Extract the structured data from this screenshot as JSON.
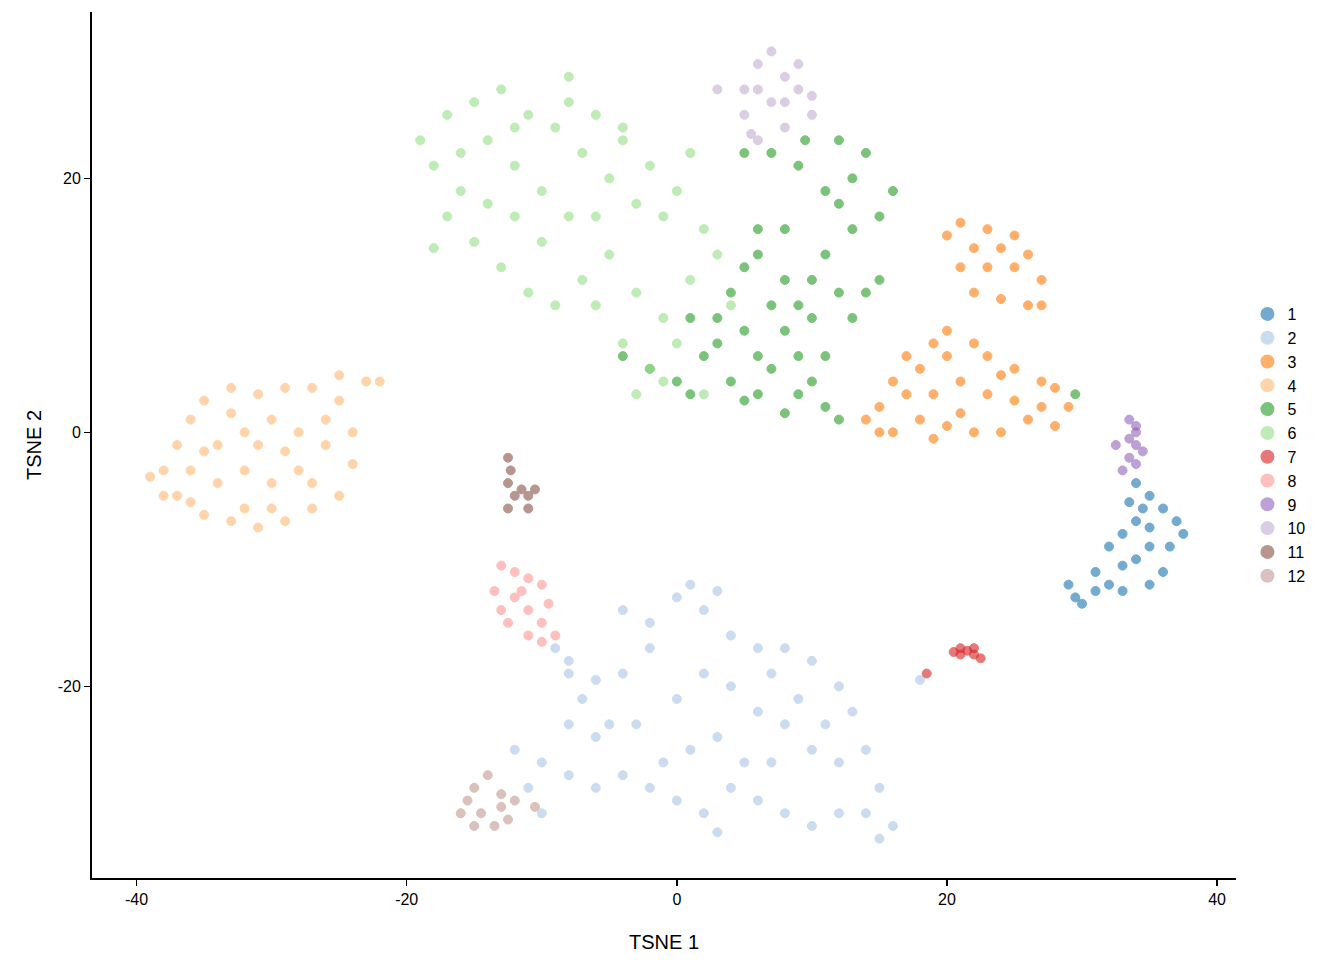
{
  "chart_data": {
    "type": "scatter",
    "x_label": "TSNE 1",
    "y_label": "TSNE 2",
    "xlim": [
      -43.3,
      41.4
    ],
    "ylim": [
      -35.1,
      33.1
    ],
    "xticks": [
      -40,
      -20,
      0,
      20,
      40
    ],
    "yticks": [
      -20,
      0,
      20
    ],
    "grid": false,
    "legend": "right",
    "marker": "circle",
    "series": [
      {
        "name": "1",
        "color": "#1f77b4",
        "x": [
          34,
          35,
          36,
          37,
          36.5,
          36,
          35,
          33,
          32,
          31,
          32,
          33,
          34,
          35,
          34,
          33,
          35,
          33.5,
          29,
          30,
          29.5,
          31,
          37.5,
          34.5
        ],
        "y": [
          -4,
          -5,
          -6,
          -7,
          -9,
          -11,
          -12,
          -12.5,
          -12,
          -11,
          -9,
          -8,
          -7,
          -9,
          -10,
          -10.5,
          -7.5,
          -5.5,
          -12,
          -13.5,
          -13,
          -12.5,
          -8,
          -6
        ]
      },
      {
        "name": "2",
        "color": "#aec7e8",
        "x": [
          -9,
          -8,
          -7,
          -6,
          -4,
          -2,
          0,
          1,
          2,
          3,
          4,
          6,
          8,
          10,
          12,
          13,
          14,
          15,
          16,
          14,
          12,
          10,
          8,
          6,
          4,
          2,
          0,
          -2,
          -4,
          -6,
          -8,
          -10,
          -12,
          -11,
          -6,
          -3,
          0,
          2,
          4,
          6,
          8,
          10,
          12,
          -4,
          -2,
          -5,
          1,
          3,
          5,
          7,
          9,
          11,
          -1,
          -8,
          -10,
          3,
          15,
          -8,
          7,
          18
        ],
        "y": [
          -17,
          -19,
          -21,
          -19.5,
          -19,
          -17,
          -13,
          -12,
          -14,
          -12.5,
          -16,
          -17,
          -17,
          -18,
          -20,
          -22,
          -25,
          -28,
          -31,
          -30,
          -30,
          -31,
          -30,
          -29,
          -28,
          -30,
          -29,
          -28,
          -27,
          -28,
          -27,
          -26,
          -25,
          -28,
          -24,
          -23,
          -21,
          -19,
          -20,
          -22,
          -23,
          -25,
          -26,
          -14,
          -15,
          -23,
          -25,
          -24,
          -26,
          -26,
          -21,
          -23,
          -26,
          -23,
          -30,
          -31.5,
          -32,
          -18,
          -19,
          -19.5
        ]
      },
      {
        "name": "3",
        "color": "#ff7f0e",
        "x": [
          20,
          21,
          23,
          25,
          26,
          27,
          26,
          24,
          22,
          21,
          23,
          25,
          24,
          22,
          27,
          14,
          15,
          16,
          17,
          18,
          19,
          20,
          22,
          23,
          25,
          27,
          29,
          28,
          26,
          24,
          22,
          20,
          18,
          19,
          21,
          23,
          25,
          27,
          20,
          17,
          16,
          21,
          24,
          15,
          28,
          19
        ],
        "y": [
          15.5,
          16.5,
          16,
          15.5,
          14,
          12,
          10,
          10.5,
          11,
          13,
          13,
          13,
          14.5,
          14.5,
          10,
          1,
          2,
          0,
          3,
          5,
          7,
          8,
          7,
          6,
          5,
          4,
          2,
          0.5,
          1,
          0,
          0,
          0.5,
          1,
          3,
          4,
          3,
          2.5,
          2,
          6,
          6,
          4,
          1.5,
          4.5,
          0,
          3.5,
          -0.5
        ]
      },
      {
        "name": "4",
        "color": "#ffbb78",
        "x": [
          -38,
          -37,
          -36,
          -35,
          -33,
          -31,
          -29,
          -27,
          -25,
          -24,
          -24,
          -25,
          -27,
          -29,
          -31,
          -33,
          -35,
          -37,
          -39,
          -36,
          -34,
          -32,
          -30,
          -28,
          -26,
          -28,
          -30,
          -32,
          -34,
          -32,
          -30,
          -27,
          -33,
          -29,
          -35,
          -26,
          -23,
          -22,
          -25,
          -38,
          -31,
          -36
        ],
        "y": [
          -3,
          -1,
          1,
          2.5,
          3.5,
          3,
          3.5,
          3.5,
          2.5,
          0,
          -2.5,
          -5,
          -6,
          -7,
          -7.5,
          -7,
          -6.5,
          -5,
          -3.5,
          -3,
          -1,
          0,
          1,
          0,
          -1,
          -3,
          -4,
          -3,
          -4,
          -6,
          -6,
          -4,
          1.5,
          -1.5,
          -1.5,
          1,
          4,
          4,
          4.5,
          -5,
          -1,
          -5.5
        ]
      },
      {
        "name": "5",
        "color": "#2ca02c",
        "x": [
          -4,
          -2,
          0,
          1,
          2,
          3,
          4,
          5,
          6,
          7,
          8,
          9,
          10,
          11,
          12,
          8,
          6,
          4,
          3,
          5,
          6,
          7,
          9,
          10,
          11,
          12,
          13,
          14,
          15,
          13,
          12,
          13,
          14,
          12,
          15,
          16,
          11,
          9,
          7,
          5,
          6,
          8,
          10,
          8,
          1,
          5,
          11,
          9,
          29.5,
          9.5
        ],
        "y": [
          6,
          5,
          4,
          3,
          6,
          9,
          11,
          13,
          14,
          10,
          8,
          6,
          4,
          2,
          1,
          1.5,
          3,
          4,
          7,
          8,
          6,
          5,
          10,
          12,
          14,
          11,
          9,
          11,
          12,
          16,
          18,
          20,
          22,
          23,
          17,
          19,
          19,
          21,
          22,
          22,
          16,
          16,
          9,
          12,
          9,
          2.5,
          6,
          3,
          3,
          23
        ]
      },
      {
        "name": "6",
        "color": "#98df8a",
        "x": [
          -19,
          -18,
          -17,
          -16,
          -15,
          -14,
          -13,
          -12,
          -11,
          -10,
          -9,
          -8,
          -7,
          -6,
          -5,
          -4,
          -3,
          -2,
          -1,
          0,
          1,
          2,
          -17,
          -15,
          -13,
          -11,
          -9,
          -7,
          -5,
          -3,
          -1,
          0,
          -2,
          -3,
          1,
          3,
          -12,
          -10,
          -8,
          -6,
          -14,
          -16,
          -12,
          -6,
          -4,
          -1,
          4,
          2,
          -18,
          -8,
          -4
        ],
        "y": [
          23,
          21,
          25,
          19,
          26,
          23,
          27,
          21,
          25,
          19,
          24,
          26,
          22,
          25,
          20,
          23,
          18,
          21,
          17,
          19,
          22,
          16,
          17,
          15,
          13,
          11,
          10,
          12,
          14,
          11,
          9,
          7,
          5,
          3,
          12,
          14,
          17,
          15,
          17,
          17,
          18,
          22,
          24,
          10,
          7,
          4,
          10,
          3,
          14.5,
          28,
          24
        ]
      },
      {
        "name": "7",
        "color": "#d62728",
        "x": [
          21,
          21.5,
          22,
          22.5,
          21,
          22,
          18.5,
          20.5
        ],
        "y": [
          -17,
          -17.2,
          -17.5,
          -17.8,
          -17.5,
          -17,
          -19,
          -17.3
        ]
      },
      {
        "name": "8",
        "color": "#ff9896",
        "x": [
          -13,
          -12,
          -11,
          -10,
          -13.5,
          -12,
          -11,
          -10,
          -9,
          -12.5,
          -11,
          -10,
          -13,
          -11.5,
          -9.5
        ],
        "y": [
          -10.5,
          -11,
          -11.5,
          -12,
          -12.5,
          -13,
          -14,
          -15,
          -16,
          -15,
          -16,
          -16.5,
          -14,
          -12.5,
          -13.5
        ]
      },
      {
        "name": "9",
        "color": "#9467bd",
        "x": [
          33.5,
          34,
          33.5,
          34,
          34.5,
          33.5,
          34,
          32.5,
          33,
          34
        ],
        "y": [
          1,
          0.5,
          -0.5,
          -1,
          -1.5,
          -2,
          -2.5,
          -1,
          -3,
          0
        ]
      },
      {
        "name": "10",
        "color": "#c5b0d5",
        "x": [
          5,
          6,
          7,
          8,
          9,
          10,
          8,
          6,
          5,
          7,
          9,
          6,
          8,
          5.5,
          3,
          10
        ],
        "y": [
          27,
          29,
          30,
          28,
          27,
          25,
          24,
          23,
          25,
          26,
          29,
          27,
          26,
          23.5,
          27,
          26.5
        ]
      },
      {
        "name": "11",
        "color": "#8c564b",
        "x": [
          -12.5,
          -12.3,
          -12.5,
          -12,
          -11,
          -12.5,
          -10.5,
          -11.5,
          -11
        ],
        "y": [
          -2,
          -3,
          -4,
          -5,
          -5,
          -6,
          -4.5,
          -4.5,
          -6
        ]
      },
      {
        "name": "12",
        "color": "#c49c94",
        "x": [
          -15.5,
          -15,
          -14,
          -13,
          -12,
          -14.5,
          -13.5,
          -15,
          -12.5,
          -10.5,
          -16,
          -13
        ],
        "y": [
          -29,
          -28,
          -27,
          -28.5,
          -29,
          -30,
          -31,
          -31,
          -30.5,
          -29.5,
          -30,
          -29.5
        ]
      }
    ]
  }
}
